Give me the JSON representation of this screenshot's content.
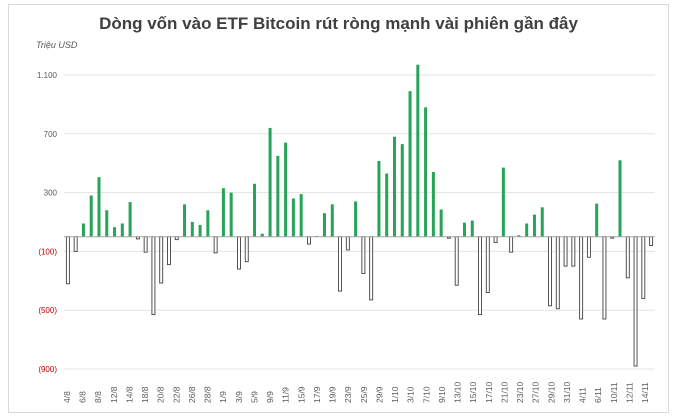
{
  "chart_data": {
    "type": "bar",
    "title": "Dòng vốn vào ETF Bitcoin rút ròng mạnh vài phiên gần đây",
    "unit_label": "Triệu USD",
    "ylim": [
      -900,
      1200
    ],
    "y_ticks": [
      1100,
      700,
      300,
      -100,
      -500,
      -900
    ],
    "y_tick_labels": [
      "1.100",
      "700",
      "300",
      "(100)",
      "(500)",
      "(900)"
    ],
    "grid": true,
    "colors": {
      "positive": "#27a35a",
      "negative_fill": "#ffffff",
      "negative_stroke": "#404040"
    },
    "x_tick_labels": [
      "4/8",
      "6/8",
      "8/8",
      "12/8",
      "14/8",
      "18/8",
      "20/8",
      "22/8",
      "26/8",
      "28/8",
      "1/9",
      "3/9",
      "5/9",
      "9/9",
      "11/9",
      "15/9",
      "17/9",
      "19/9",
      "23/9",
      "25/9",
      "29/9",
      "1/10",
      "3/10",
      "7/10",
      "9/10",
      "13/10",
      "15/10",
      "17/10",
      "21/10",
      "23/10",
      "27/10",
      "29/10",
      "31/10",
      "4/11",
      "6/11",
      "10/11",
      "12/11",
      "14/11"
    ],
    "values": [
      -320,
      -100,
      90,
      280,
      405,
      180,
      65,
      90,
      235,
      -15,
      -105,
      -530,
      -315,
      -190,
      -20,
      220,
      100,
      80,
      180,
      -110,
      330,
      300,
      -220,
      -170,
      360,
      20,
      740,
      550,
      640,
      260,
      290,
      -50,
      5,
      160,
      220,
      -370,
      -90,
      240,
      -250,
      -430,
      515,
      430,
      680,
      630,
      990,
      1170,
      880,
      440,
      185,
      -10,
      -330,
      95,
      110,
      -530,
      -380,
      -40,
      470,
      -105,
      10,
      90,
      150,
      200,
      -470,
      -490,
      -200,
      -200,
      -560,
      -140,
      225,
      -560,
      -10,
      520,
      -280,
      -880,
      -420,
      -60
    ]
  }
}
